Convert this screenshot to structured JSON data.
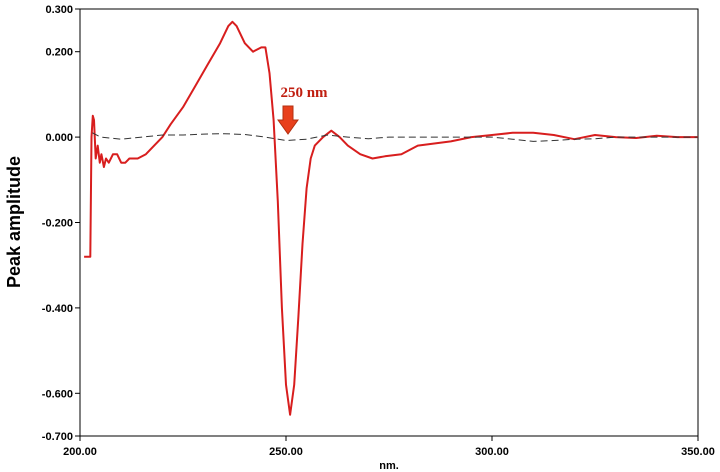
{
  "chart_data": {
    "type": "line",
    "title": "",
    "xlabel": "nm.",
    "ylabel": "Peak amplitude",
    "xlim": [
      200,
      350
    ],
    "ylim": [
      -0.7,
      0.3
    ],
    "x_ticks": [
      200,
      250,
      300,
      350
    ],
    "x_tick_labels": [
      "200.00",
      "250.00",
      "300.00",
      "350.00"
    ],
    "y_ticks": [
      0.3,
      0.2,
      0.0,
      -0.2,
      -0.4,
      -0.6,
      -0.7
    ],
    "y_tick_labels": [
      "0.300",
      "0.200",
      "0.000",
      "-0.200",
      "-0.400",
      "-0.600",
      "-0.700"
    ],
    "grid": false,
    "annotation": {
      "text": "250 nm",
      "x": 250,
      "color": "#e8401c"
    },
    "series": [
      {
        "color": "#d81e1e",
        "style": "solid",
        "points": [
          [
            201.0,
            -0.28
          ],
          [
            202.5,
            -0.28
          ],
          [
            202.8,
            0.0
          ],
          [
            203.1,
            0.05
          ],
          [
            203.4,
            0.04
          ],
          [
            203.8,
            -0.05
          ],
          [
            204.3,
            -0.02
          ],
          [
            204.8,
            -0.06
          ],
          [
            205.2,
            -0.04
          ],
          [
            205.8,
            -0.07
          ],
          [
            206.3,
            -0.05
          ],
          [
            207.0,
            -0.06
          ],
          [
            208.0,
            -0.04
          ],
          [
            209.0,
            -0.04
          ],
          [
            210.0,
            -0.06
          ],
          [
            211.0,
            -0.06
          ],
          [
            212.0,
            -0.05
          ],
          [
            214.0,
            -0.05
          ],
          [
            216.0,
            -0.04
          ],
          [
            218.0,
            -0.02
          ],
          [
            220.0,
            0.0
          ],
          [
            222.0,
            0.03
          ],
          [
            225.0,
            0.07
          ],
          [
            228.0,
            0.12
          ],
          [
            231.0,
            0.17
          ],
          [
            234.0,
            0.22
          ],
          [
            236.0,
            0.26
          ],
          [
            237.0,
            0.27
          ],
          [
            238.0,
            0.26
          ],
          [
            240.0,
            0.22
          ],
          [
            242.0,
            0.2
          ],
          [
            244.0,
            0.21
          ],
          [
            245.0,
            0.21
          ],
          [
            246.0,
            0.15
          ],
          [
            247.0,
            0.04
          ],
          [
            248.0,
            -0.15
          ],
          [
            249.0,
            -0.4
          ],
          [
            250.0,
            -0.58
          ],
          [
            251.0,
            -0.65
          ],
          [
            252.0,
            -0.58
          ],
          [
            253.0,
            -0.42
          ],
          [
            254.0,
            -0.25
          ],
          [
            255.0,
            -0.12
          ],
          [
            256.0,
            -0.05
          ],
          [
            257.0,
            -0.02
          ],
          [
            259.0,
            0.0
          ],
          [
            261.0,
            0.015
          ],
          [
            263.0,
            0.0
          ],
          [
            265.0,
            -0.02
          ],
          [
            268.0,
            -0.04
          ],
          [
            271.0,
            -0.05
          ],
          [
            274.0,
            -0.045
          ],
          [
            278.0,
            -0.04
          ],
          [
            282.0,
            -0.02
          ],
          [
            286.0,
            -0.015
          ],
          [
            290.0,
            -0.01
          ],
          [
            295.0,
            0.0
          ],
          [
            300.0,
            0.005
          ],
          [
            305.0,
            0.01
          ],
          [
            310.0,
            0.01
          ],
          [
            315.0,
            0.005
          ],
          [
            320.0,
            -0.005
          ],
          [
            325.0,
            0.005
          ],
          [
            330.0,
            0.0
          ],
          [
            335.0,
            -0.002
          ],
          [
            340.0,
            0.003
          ],
          [
            345.0,
            0.0
          ],
          [
            350.0,
            0.0
          ]
        ]
      },
      {
        "color": "#333333",
        "style": "dashed",
        "points": [
          [
            203.0,
            0.01
          ],
          [
            205.0,
            0.0
          ],
          [
            210.0,
            -0.005
          ],
          [
            215.0,
            0.0
          ],
          [
            220.0,
            0.005
          ],
          [
            225.0,
            0.005
          ],
          [
            230.0,
            0.007
          ],
          [
            235.0,
            0.008
          ],
          [
            240.0,
            0.006
          ],
          [
            245.0,
            0.0
          ],
          [
            250.0,
            -0.008
          ],
          [
            255.0,
            -0.005
          ],
          [
            260.0,
            0.005
          ],
          [
            265.0,
            0.0
          ],
          [
            270.0,
            -0.004
          ],
          [
            275.0,
            0.0
          ],
          [
            280.0,
            0.0
          ],
          [
            290.0,
            0.0
          ],
          [
            300.0,
            0.0
          ],
          [
            305.0,
            -0.005
          ],
          [
            310.0,
            -0.01
          ],
          [
            315.0,
            -0.008
          ],
          [
            320.0,
            -0.005
          ],
          [
            325.0,
            -0.004
          ],
          [
            330.0,
            0.0
          ],
          [
            335.0,
            0.0
          ],
          [
            340.0,
            0.0
          ],
          [
            350.0,
            0.0
          ]
        ]
      }
    ]
  }
}
